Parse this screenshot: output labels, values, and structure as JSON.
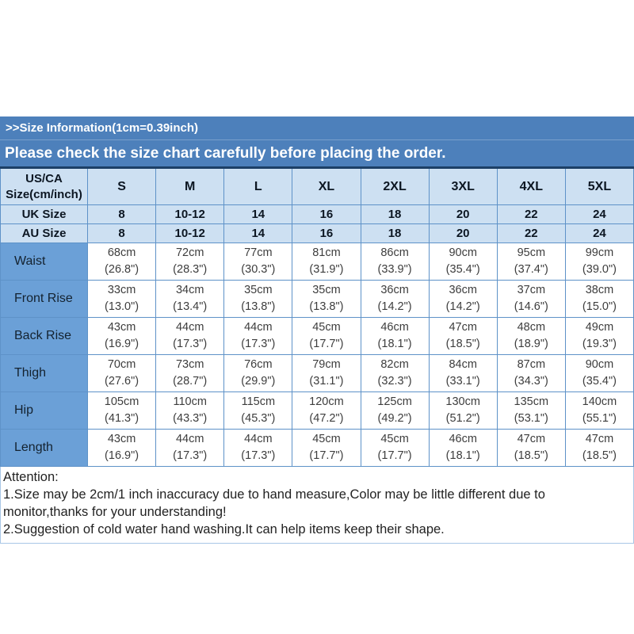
{
  "banner": {
    "size_info": ">>Size Information(1cm=0.39inch)",
    "notice": "Please check the size chart carefully before placing the order."
  },
  "table": {
    "corner_line1": "US/CA",
    "corner_line2": "Size(cm/inch)",
    "columns": [
      "S",
      "M",
      "L",
      "XL",
      "2XL",
      "3XL",
      "4XL",
      "5XL"
    ],
    "size_rows": [
      {
        "label": "UK Size",
        "values": [
          "8",
          "10-12",
          "14",
          "16",
          "18",
          "20",
          "22",
          "24"
        ]
      },
      {
        "label": "AU Size",
        "values": [
          "8",
          "10-12",
          "14",
          "16",
          "18",
          "20",
          "22",
          "24"
        ]
      }
    ],
    "measure_rows": [
      {
        "label": "Waist",
        "cm": [
          "68cm",
          "72cm",
          "77cm",
          "81cm",
          "86cm",
          "90cm",
          "95cm",
          "99cm"
        ],
        "inch": [
          "(26.8\")",
          "(28.3\")",
          "(30.3\")",
          "(31.9\")",
          "(33.9\")",
          "(35.4\")",
          "(37.4\")",
          "(39.0\")"
        ]
      },
      {
        "label": "Front Rise",
        "cm": [
          "33cm",
          "34cm",
          "35cm",
          "35cm",
          "36cm",
          "36cm",
          "37cm",
          "38cm"
        ],
        "inch": [
          "(13.0\")",
          "(13.4\")",
          "(13.8\")",
          "(13.8\")",
          "(14.2\")",
          "(14.2\")",
          "(14.6\")",
          "(15.0\")"
        ]
      },
      {
        "label": "Back Rise",
        "cm": [
          "43cm",
          "44cm",
          "44cm",
          "45cm",
          "46cm",
          "47cm",
          "48cm",
          "49cm"
        ],
        "inch": [
          "(16.9\")",
          "(17.3\")",
          "(17.3\")",
          "(17.7\")",
          "(18.1\")",
          "(18.5\")",
          "(18.9\")",
          "(19.3\")"
        ]
      },
      {
        "label": "Thigh",
        "cm": [
          "70cm",
          "73cm",
          "76cm",
          "79cm",
          "82cm",
          "84cm",
          "87cm",
          "90cm"
        ],
        "inch": [
          "(27.6\")",
          "(28.7\")",
          "(29.9\")",
          "(31.1\")",
          "(32.3\")",
          "(33.1\")",
          "(34.3\")",
          "(35.4\")"
        ]
      },
      {
        "label": "Hip",
        "cm": [
          "105cm",
          "110cm",
          "115cm",
          "120cm",
          "125cm",
          "130cm",
          "135cm",
          "140cm"
        ],
        "inch": [
          "(41.3\")",
          "(43.3\")",
          "(45.3\")",
          "(47.2\")",
          "(49.2\")",
          "(51.2\")",
          "(53.1\")",
          "(55.1\")"
        ]
      },
      {
        "label": "Length",
        "cm": [
          "43cm",
          "44cm",
          "44cm",
          "45cm",
          "45cm",
          "46cm",
          "47cm",
          "47cm"
        ],
        "inch": [
          "(16.9\")",
          "(17.3\")",
          "(17.3\")",
          "(17.7\")",
          "(17.7\")",
          "(18.1\")",
          "(18.5\")",
          "(18.5\")"
        ]
      }
    ]
  },
  "attention": {
    "title": "Attention:",
    "notes": [
      "1.Size may be 2cm/1 inch inaccuracy due to hand measure,Color may be little different due to monitor,thanks for your understanding!",
      "2.Suggestion of cold water hand washing.It can help items keep their shape."
    ]
  },
  "colors": {
    "banner_blue": "#4d80bb",
    "header_cell_blue": "#cde0f2",
    "label_cell_blue": "#6ba0d7",
    "cell_border_blue": "#5e92c8",
    "table_top_border": "#1c3f66",
    "attention_border": "#a9c7e6"
  },
  "chart_data": {
    "type": "table",
    "title": ">>Size Information(1cm=0.39inch)",
    "subtitle": "Please check the size chart carefully before placing the order.",
    "columns": [
      "US/CA Size(cm/inch)",
      "S",
      "M",
      "L",
      "XL",
      "2XL",
      "3XL",
      "4XL",
      "5XL"
    ],
    "rows": [
      [
        "UK Size",
        "8",
        "10-12",
        "14",
        "16",
        "18",
        "20",
        "22",
        "24"
      ],
      [
        "AU Size",
        "8",
        "10-12",
        "14",
        "16",
        "18",
        "20",
        "22",
        "24"
      ],
      [
        "Waist",
        "68cm (26.8\")",
        "72cm (28.3\")",
        "77cm (30.3\")",
        "81cm (31.9\")",
        "86cm (33.9\")",
        "90cm (35.4\")",
        "95cm (37.4\")",
        "99cm (39.0\")"
      ],
      [
        "Front Rise",
        "33cm (13.0\")",
        "34cm (13.4\")",
        "35cm (13.8\")",
        "35cm (13.8\")",
        "36cm (14.2\")",
        "36cm (14.2\")",
        "37cm (14.6\")",
        "38cm (15.0\")"
      ],
      [
        "Back Rise",
        "43cm (16.9\")",
        "44cm (17.3\")",
        "44cm (17.3\")",
        "45cm (17.7\")",
        "46cm (18.1\")",
        "47cm (18.5\")",
        "48cm (18.9\")",
        "49cm (19.3\")"
      ],
      [
        "Thigh",
        "70cm (27.6\")",
        "73cm (28.7\")",
        "76cm (29.9\")",
        "79cm (31.1\")",
        "82cm (32.3\")",
        "84cm (33.1\")",
        "87cm (34.3\")",
        "90cm (35.4\")"
      ],
      [
        "Hip",
        "105cm (41.3\")",
        "110cm (43.3\")",
        "115cm (45.3\")",
        "120cm (47.2\")",
        "125cm (49.2\")",
        "130cm (51.2\")",
        "135cm (53.1\")",
        "140cm (55.1\")"
      ],
      [
        "Length",
        "43cm (16.9\")",
        "44cm (17.3\")",
        "44cm (17.3\")",
        "45cm (17.7\")",
        "45cm (17.7\")",
        "46cm (18.1\")",
        "47cm (18.5\")",
        "47cm (18.5\")"
      ]
    ],
    "notes": [
      "Attention:",
      "1.Size may be 2cm/1 inch inaccuracy due to hand measure,Color may be little different due to monitor,thanks for your understanding!",
      "2.Suggestion of cold water hand washing.It can help items keep their shape."
    ]
  }
}
